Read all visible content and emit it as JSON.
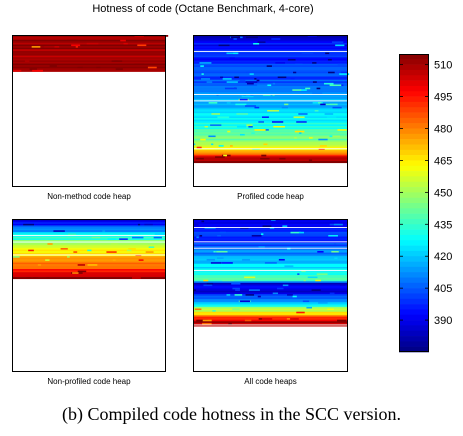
{
  "figure": {
    "title": "Hotness of code (Octane Benchmark, 4-core)",
    "caption": "(b) Compiled code hotness in the SCC version."
  },
  "chart_data": {
    "type": "heatmap",
    "title": "Hotness of code (Octane Benchmark, 4-core)",
    "colormap": "jet",
    "colorbar": {
      "min": 375,
      "max": 515,
      "ticks": [
        390,
        405,
        420,
        435,
        450,
        465,
        480,
        495,
        510
      ],
      "tick_labels": [
        "390",
        "405",
        "420",
        "435",
        "450",
        "465",
        "480",
        "495",
        "510"
      ]
    },
    "panels": [
      {
        "id": "non-method",
        "xlabel": "Non-method code heap",
        "fill_fraction": 0.24,
        "profile": [
          [
            0.0,
            512
          ],
          [
            0.85,
            512
          ],
          [
            0.88,
            499
          ],
          [
            0.91,
            512
          ],
          [
            0.95,
            512
          ],
          [
            1.0,
            512
          ]
        ]
      },
      {
        "id": "profiled",
        "xlabel": "Profiled code heap",
        "fill_fraction": 0.84,
        "profile": [
          [
            0.0,
            385
          ],
          [
            0.08,
            395
          ],
          [
            0.2,
            398
          ],
          [
            0.3,
            400
          ],
          [
            0.45,
            412
          ],
          [
            0.55,
            418
          ],
          [
            0.7,
            428
          ],
          [
            0.8,
            440
          ],
          [
            0.88,
            455
          ],
          [
            0.93,
            478
          ],
          [
            0.97,
            505
          ],
          [
            1.0,
            512
          ]
        ]
      },
      {
        "id": "non-profiled",
        "xlabel": "Non-profiled code heap",
        "fill_fraction": 0.39,
        "profile": [
          [
            0.0,
            390
          ],
          [
            0.12,
            400
          ],
          [
            0.22,
            420
          ],
          [
            0.35,
            440
          ],
          [
            0.5,
            460
          ],
          [
            0.65,
            470
          ],
          [
            0.75,
            478
          ],
          [
            0.85,
            490
          ],
          [
            0.92,
            505
          ],
          [
            1.0,
            512
          ]
        ]
      },
      {
        "id": "all",
        "xlabel": "All code heaps",
        "fill_fraction": 0.7,
        "profile": [
          [
            0.0,
            385
          ],
          [
            0.08,
            395
          ],
          [
            0.2,
            402
          ],
          [
            0.3,
            410
          ],
          [
            0.4,
            420
          ],
          [
            0.5,
            428
          ],
          [
            0.58,
            440
          ],
          [
            0.6,
            385
          ],
          [
            0.7,
            390
          ],
          [
            0.78,
            420
          ],
          [
            0.86,
            455
          ],
          [
            0.92,
            485
          ],
          [
            0.96,
            505
          ],
          [
            1.0,
            512
          ]
        ]
      }
    ]
  }
}
